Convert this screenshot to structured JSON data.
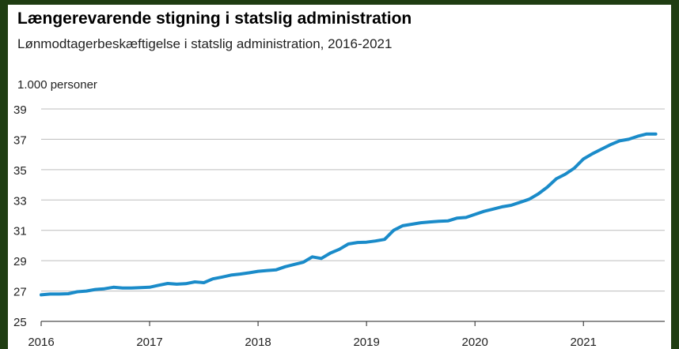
{
  "chart_data": {
    "type": "line",
    "title": "Længerevarende stigning i statslig administration",
    "subtitle": "Lønmodtagerbeskæftigelse i statslig administration, 2016-2021",
    "ylabel": "1.000 personer",
    "xlabel": "",
    "ylim": [
      25,
      39
    ],
    "yticks": [
      25,
      27,
      29,
      31,
      33,
      35,
      37,
      39
    ],
    "xticks": [
      "2016",
      "2017",
      "2018",
      "2019",
      "2020",
      "2021"
    ],
    "xlim": [
      2016,
      2021.75
    ],
    "grid": true,
    "line_color": "#1a8bc9",
    "series": [
      {
        "x": [
          2016.0,
          2016.083,
          2016.167,
          2016.25,
          2016.333,
          2016.417,
          2016.5,
          2016.583,
          2016.667,
          2016.75,
          2016.833,
          2016.917,
          2017.0,
          2017.083,
          2017.167,
          2017.25,
          2017.333,
          2017.417,
          2017.5,
          2017.583,
          2017.667,
          2017.75,
          2017.833,
          2017.917,
          2018.0,
          2018.083,
          2018.167,
          2018.25,
          2018.333,
          2018.417,
          2018.5,
          2018.583,
          2018.667,
          2018.75,
          2018.833,
          2018.917,
          2019.0,
          2019.083,
          2019.167,
          2019.25,
          2019.333,
          2019.417,
          2019.5,
          2019.583,
          2019.667,
          2019.75,
          2019.833,
          2019.917,
          2020.0,
          2020.083,
          2020.167,
          2020.25,
          2020.333,
          2020.417,
          2020.5,
          2020.583,
          2020.667,
          2020.75,
          2020.833,
          2020.917,
          2021.0,
          2021.083,
          2021.167,
          2021.25,
          2021.333,
          2021.417,
          2021.5,
          2021.583,
          2021.667
        ],
        "values": [
          26.75,
          26.8,
          26.8,
          26.82,
          26.95,
          27.0,
          27.1,
          27.15,
          27.25,
          27.2,
          27.2,
          27.22,
          27.25,
          27.38,
          27.5,
          27.45,
          27.48,
          27.6,
          27.55,
          27.8,
          27.92,
          28.05,
          28.12,
          28.2,
          28.3,
          28.35,
          28.4,
          28.6,
          28.75,
          28.9,
          29.25,
          29.15,
          29.5,
          29.75,
          30.1,
          30.2,
          30.22,
          30.3,
          30.4,
          31.0,
          31.3,
          31.4,
          31.5,
          31.55,
          31.6,
          31.62,
          31.8,
          31.85,
          32.05,
          32.25,
          32.4,
          32.55,
          32.65,
          32.85,
          33.05,
          33.4,
          33.85,
          34.4,
          34.7,
          35.1,
          35.7,
          36.05,
          36.35,
          36.65,
          36.9,
          37.0,
          37.2,
          37.35,
          37.35
        ]
      }
    ]
  }
}
